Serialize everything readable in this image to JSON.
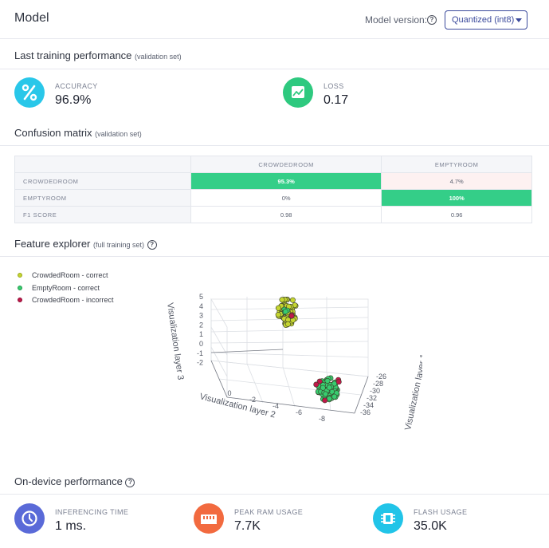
{
  "header": {
    "title": "Model",
    "model_version_label": "Model version:",
    "model_version_value": "Quantized (int8)"
  },
  "training": {
    "title": "Last training performance",
    "subtitle": "(validation set)",
    "metrics": [
      {
        "label": "ACCURACY",
        "value": "96.9%",
        "icon": "percent-icon",
        "color": "#29c7e9"
      },
      {
        "label": "LOSS",
        "value": "0.17",
        "icon": "trend-chart-icon",
        "color": "#2ec97f"
      }
    ]
  },
  "confusion": {
    "title": "Confusion matrix",
    "subtitle": "(validation set)",
    "columns": [
      "CROWDEDROOM",
      "EMPTYROOM"
    ],
    "rows": [
      {
        "label": "CROWDEDROOM",
        "cells": [
          "95.3%",
          "4.7%"
        ]
      },
      {
        "label": "EMPTYROOM",
        "cells": [
          "0%",
          "100%"
        ]
      },
      {
        "label": "F1 SCORE",
        "cells": [
          "0.98",
          "0.96"
        ]
      }
    ]
  },
  "explorer": {
    "title": "Feature explorer",
    "subtitle": "(full training set)",
    "legend": [
      {
        "label": "CrowdedRoom - correct",
        "color": "#c5d530"
      },
      {
        "label": "EmptyRoom - correct",
        "color": "#38cc6f"
      },
      {
        "label": "CrowdedRoom - incorrect",
        "color": "#c0184a"
      }
    ],
    "axes": {
      "x_label": "Visualization layer 1",
      "y_label": "Visualization layer 2",
      "z_label": "Visualization layer 3",
      "x_ticks": [
        "-26",
        "-28",
        "-30",
        "-32",
        "-34",
        "-36"
      ],
      "y_ticks": [
        "0",
        "-2",
        "-4",
        "-6",
        "-8"
      ],
      "z_ticks": [
        "5",
        "4",
        "3",
        "2",
        "1",
        "0",
        "-1",
        "-2"
      ]
    }
  },
  "device": {
    "title": "On-device performance",
    "metrics": [
      {
        "label": "INFERENCING TIME",
        "value": "1 ms.",
        "icon": "clock-icon",
        "color": "#5a6ad8"
      },
      {
        "label": "PEAK RAM USAGE",
        "value": "7.7K",
        "icon": "ram-icon",
        "color": "#f26a3f"
      },
      {
        "label": "FLASH USAGE",
        "value": "35.0K",
        "icon": "chip-icon",
        "color": "#21c4e8"
      }
    ]
  }
}
